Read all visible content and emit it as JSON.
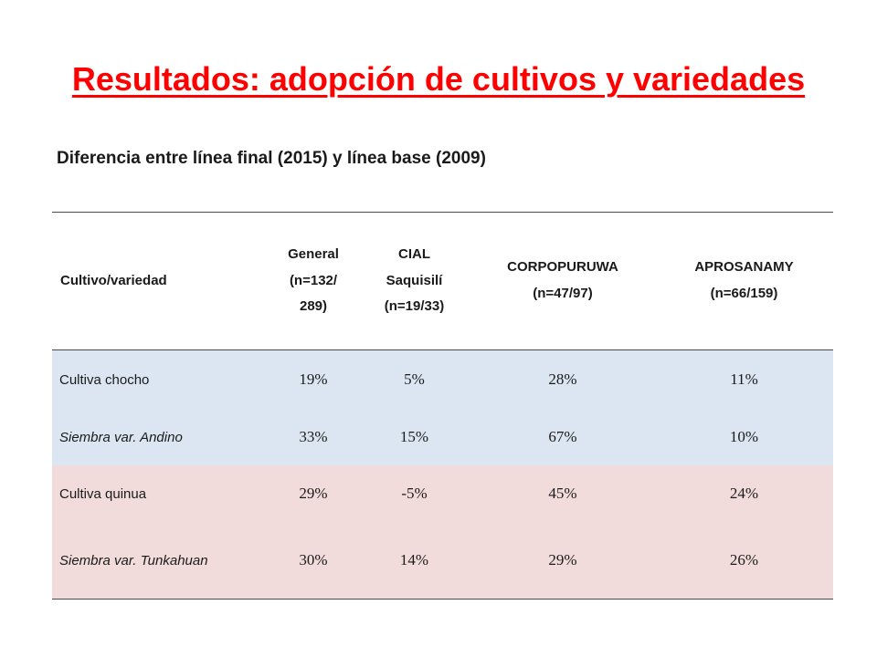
{
  "title": "Resultados: adopción de cultivos y variedades",
  "subtitle": "Diferencia entre línea final (2015) y línea base (2009)",
  "table": {
    "headers": {
      "cultivo": "Cultivo/variedad",
      "general": {
        "line1": "General",
        "line2": "(n=132/",
        "line3": "289)"
      },
      "cial": {
        "line1": "CIAL",
        "line2": "Saquisilí",
        "line3": "(n=19/33)"
      },
      "corpopuruwa": {
        "line1": "CORPOPURUWA",
        "line2": "(n=47/97)"
      },
      "aprosanamy": {
        "line1": "APROSANAMY",
        "line2": "(n=66/159)"
      }
    },
    "rows": [
      {
        "label": "Cultiva chocho",
        "general": "19%",
        "cial": "5%",
        "corpopuruwa": "28%",
        "aprosanamy": "11%"
      },
      {
        "label": "Siembra var. Andino",
        "general": "33%",
        "cial": "15%",
        "corpopuruwa": "67%",
        "aprosanamy": "10%"
      },
      {
        "label": "Cultiva quinua",
        "general": "29%",
        "cial": "-5%",
        "corpopuruwa": "45%",
        "aprosanamy": "24%"
      },
      {
        "label": "Siembra var. Tunkahuan",
        "general": "30%",
        "cial": "14%",
        "corpopuruwa": "29%",
        "aprosanamy": "26%"
      }
    ]
  },
  "colors": {
    "title": "#ff0000",
    "chocho_rows": "#dce6f2",
    "quinua_rows": "#f2dcdb"
  }
}
